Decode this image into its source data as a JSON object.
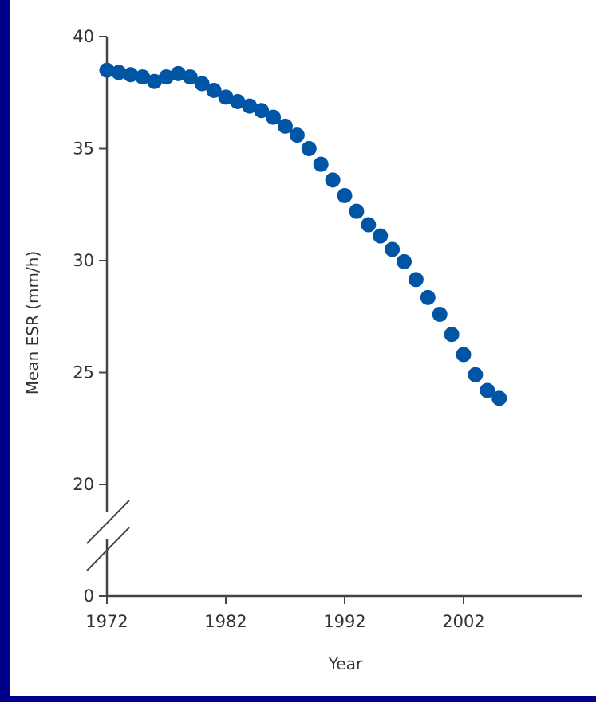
{
  "chart_data": {
    "type": "scatter",
    "title": "",
    "xlabel": "Year",
    "ylabel": "Mean ESR (mm/h)",
    "xlim": [
      1972,
      2013
    ],
    "x_ticks": [
      {
        "value": 1972,
        "label": "1972"
      },
      {
        "value": 1982,
        "label": "1982"
      },
      {
        "value": 1992,
        "label": "1992"
      },
      {
        "value": 2002,
        "label": "2002"
      }
    ],
    "y_ticks": [
      {
        "value": 0,
        "label": "0"
      },
      {
        "value": 20,
        "label": "20"
      },
      {
        "value": 25,
        "label": "25"
      },
      {
        "value": 30,
        "label": "30"
      },
      {
        "value": 35,
        "label": "35"
      },
      {
        "value": 40,
        "label": "40"
      }
    ],
    "y_axis_break": [
      0,
      20
    ],
    "grid": false,
    "colors": {
      "points": "#0055a4",
      "axes": "#444444"
    },
    "series": [
      {
        "name": "",
        "x": [
          1972,
          1973,
          1974,
          1975,
          1976,
          1977,
          1978,
          1979,
          1980,
          1981,
          1982,
          1983,
          1984,
          1985,
          1986,
          1987,
          1988,
          1989,
          1990,
          1991,
          1992,
          1993,
          1994,
          1995,
          1996,
          1997,
          1998,
          1999,
          2000,
          2001,
          2002,
          2003,
          2004,
          2005
        ],
        "y": [
          38.5,
          38.4,
          38.3,
          38.2,
          38.0,
          38.2,
          38.35,
          38.2,
          37.9,
          37.6,
          37.3,
          37.1,
          36.9,
          36.7,
          36.4,
          36.0,
          35.6,
          35.0,
          34.3,
          33.6,
          32.9,
          32.2,
          31.6,
          31.1,
          30.5,
          29.95,
          29.15,
          28.35,
          27.6,
          26.7,
          25.8,
          24.9,
          24.2,
          23.85
        ]
      }
    ]
  }
}
